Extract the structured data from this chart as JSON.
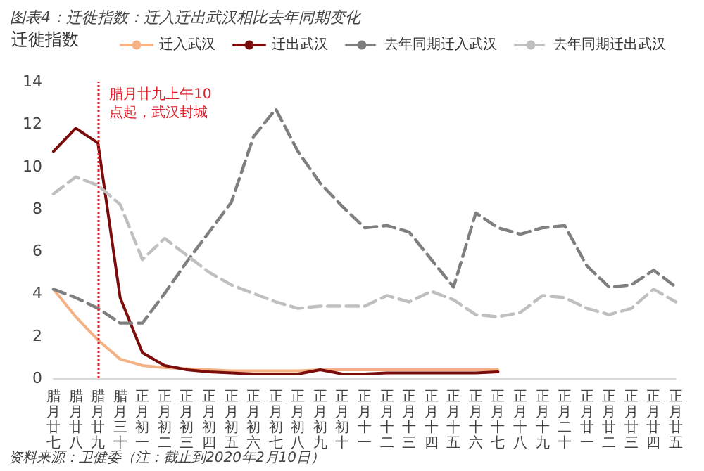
{
  "chart_data": {
    "type": "line",
    "title": "图表4：迁徙指数：迁入迁出武汉相比去年同期变化",
    "ylabel": "迁徙指数",
    "categories": [
      "腊月廿七",
      "腊月廿八",
      "腊月廿九",
      "腊月三十",
      "正月初一",
      "正月初二",
      "正月初三",
      "正月初四",
      "正月初五",
      "正月初六",
      "正月初七",
      "正月初八",
      "正月初九",
      "正月初十",
      "正月十一",
      "正月十二",
      "正月十三",
      "正月十四",
      "正月十五",
      "正月十六",
      "正月十七",
      "正月十八",
      "正月十九",
      "正月二十",
      "正月廿一",
      "正月廿二",
      "正月廿三",
      "正月廿四",
      "正月廿五"
    ],
    "series": [
      {
        "name": "迁入武汉",
        "color": "#f4b183",
        "line_style": "solid",
        "values": [
          4.2,
          2.9,
          1.8,
          0.9,
          0.6,
          0.5,
          0.45,
          0.4,
          0.35,
          0.35,
          0.35,
          0.35,
          0.4,
          0.4,
          0.4,
          0.4,
          0.4,
          0.4,
          0.4,
          0.4,
          0.4,
          null,
          null,
          null,
          null,
          null,
          null,
          null,
          null
        ]
      },
      {
        "name": "迁出武汉",
        "color": "#7b0c0c",
        "line_style": "solid",
        "values": [
          10.7,
          11.8,
          11.1,
          3.8,
          1.2,
          0.6,
          0.4,
          0.3,
          0.25,
          0.2,
          0.2,
          0.2,
          0.4,
          0.2,
          0.2,
          0.25,
          0.25,
          0.25,
          0.25,
          0.25,
          0.3,
          null,
          null,
          null,
          null,
          null,
          null,
          null,
          null
        ]
      },
      {
        "name": "去年同期迁入武汉",
        "color": "#7f7f7f",
        "line_style": "dashed",
        "values": [
          4.2,
          3.8,
          3.3,
          2.6,
          2.6,
          4.0,
          5.5,
          6.9,
          8.3,
          11.4,
          12.7,
          10.7,
          9.2,
          8.1,
          7.1,
          7.2,
          6.9,
          5.6,
          4.3,
          7.8,
          7.1,
          6.8,
          7.1,
          7.2,
          5.3,
          4.3,
          4.4,
          5.1,
          4.3
        ]
      },
      {
        "name": "去年同期迁出武汉",
        "color": "#bfbfbf",
        "line_style": "dashed",
        "values": [
          8.7,
          9.5,
          9.1,
          8.2,
          5.6,
          6.6,
          5.8,
          5.0,
          4.4,
          4.0,
          3.6,
          3.3,
          3.4,
          3.4,
          3.4,
          3.9,
          3.6,
          4.1,
          3.7,
          3.0,
          2.9,
          3.1,
          3.9,
          3.8,
          3.3,
          3.0,
          3.3,
          4.2,
          3.6
        ]
      }
    ],
    "ylim": [
      0,
      14
    ],
    "yticks": [
      0,
      2,
      4,
      6,
      8,
      10,
      12,
      14
    ],
    "grid": false,
    "legend": "top",
    "marker": "none",
    "ref_lines": [
      {
        "axis": "x",
        "value": "腊月廿九",
        "label": "腊月廿九上午10点起，武汉封城",
        "color": "#e0202a",
        "line_style": "dotted"
      }
    ],
    "annotations": [
      "资料来源：卫健委（注：截止到2020年2月10日）"
    ]
  }
}
